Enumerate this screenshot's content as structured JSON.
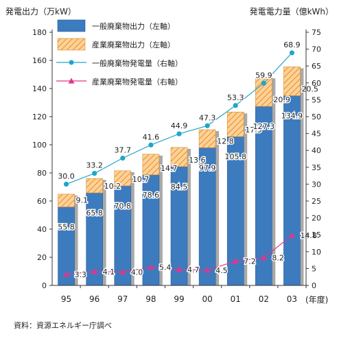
{
  "chart_data": {
    "type": "bar",
    "y_left_label": "発電出力（万kW）",
    "y_right_label": "発電電力量（億kWh）",
    "x_unit_label": "(年度)",
    "categories": [
      "95",
      "96",
      "97",
      "98",
      "99",
      "00",
      "01",
      "02",
      "03"
    ],
    "ylim_left": [
      0,
      180
    ],
    "yticks_left": [
      0,
      20,
      40,
      60,
      80,
      100,
      120,
      140,
      160,
      180
    ],
    "ylim_right": [
      0,
      75
    ],
    "yticks_right": [
      0,
      5,
      10,
      15,
      20,
      25,
      30,
      35,
      40,
      45,
      50,
      55,
      60,
      65,
      70,
      75
    ],
    "grid": false,
    "legend_position": "top-left",
    "series": [
      {
        "name": "一般廃棄物出力（左軸）",
        "kind": "bar-stack-bottom",
        "axis": "left",
        "color": "#3d7bbf",
        "values": [
          55.8,
          65.8,
          70.8,
          78.6,
          84.5,
          97.9,
          105.8,
          127.3,
          134.9
        ]
      },
      {
        "name": "産業廃棄物出力（左軸）",
        "kind": "bar-stack-top",
        "axis": "left",
        "color": "#f5a54a",
        "values": [
          9.1,
          10.2,
          10.7,
          14.7,
          13.6,
          12.8,
          17.5,
          20.9,
          20.5
        ]
      },
      {
        "name": "一般廃棄物発電量（右軸）",
        "kind": "line",
        "axis": "right",
        "color": "#1fa6c9",
        "values": [
          30.0,
          33.2,
          37.7,
          41.6,
          44.9,
          47.3,
          53.3,
          59.9,
          68.9
        ]
      },
      {
        "name": "産業廃棄物発電量（右軸）",
        "kind": "line",
        "axis": "right",
        "color": "#e0368a",
        "values": [
          3.3,
          4.1,
          4.0,
          5.4,
          4.7,
          4.5,
          7.2,
          8.2,
          14.8
        ]
      }
    ]
  },
  "source_text": "資料：資源エネルギー庁調べ"
}
